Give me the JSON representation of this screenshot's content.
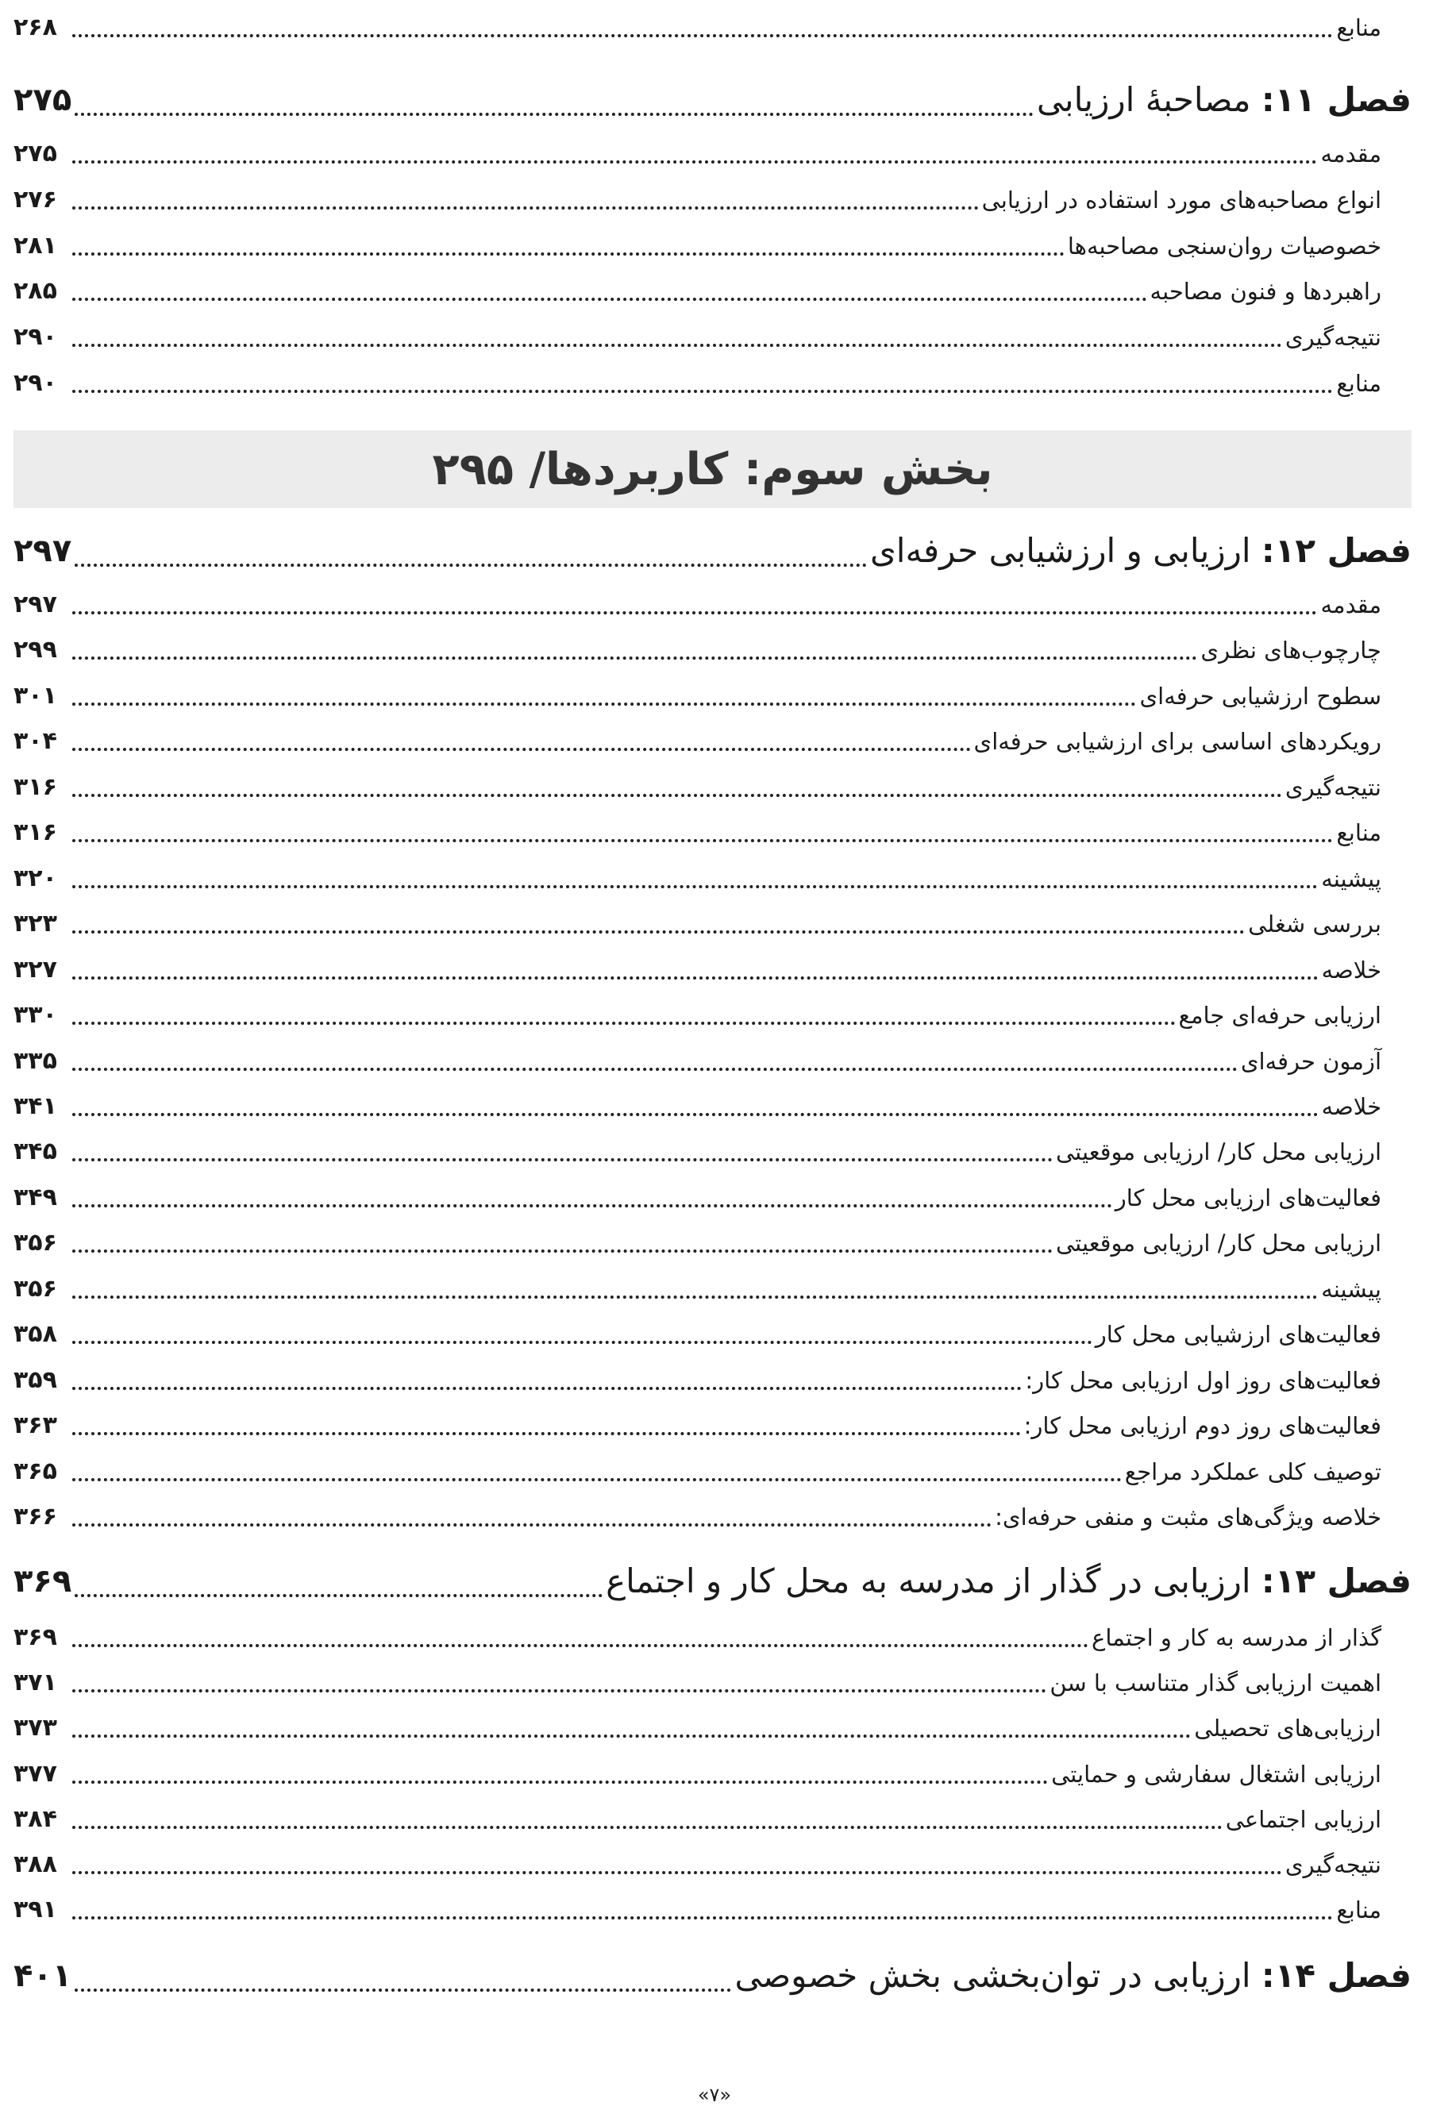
{
  "top_entry": {
    "title": "منابع",
    "page": "۲۶۸"
  },
  "chapter11": {
    "label": "فصل ۱۱:",
    "title": "مصاحبهٔ ارزیابی",
    "page": "۲۷۵",
    "items": [
      {
        "title": "مقدمه",
        "page": "۲۷۵"
      },
      {
        "title": "انواع مصاحبه‌های مورد استفاده در ارزیابی",
        "page": "۲۷۶"
      },
      {
        "title": "خصوصیات روان‌سنجی مصاحبه‌ها",
        "page": "۲۸۱"
      },
      {
        "title": "راهبردها و فنون مصاحبه",
        "page": "۲۸۵"
      },
      {
        "title": "نتیجه‌گیری",
        "page": "۲۹۰"
      },
      {
        "title": "منابع",
        "page": "۲۹۰"
      }
    ]
  },
  "part3": {
    "title": "بخش سوم: کاربردها/ ۲۹۵"
  },
  "chapter12": {
    "label": "فصل ۱۲:",
    "title": "ارزیابی و ارزشیابی حرفه‌ای",
    "page": "۲۹۷",
    "items": [
      {
        "title": "مقدمه",
        "page": "۲۹۷"
      },
      {
        "title": "چارچوب‌های نظری",
        "page": "۲۹۹"
      },
      {
        "title": "سطوح ارزشیابی حرفه‌ای",
        "page": "۳۰۱"
      },
      {
        "title": "رویکردهای اساسی برای ارزشیابی حرفه‌ای",
        "page": "۳۰۴"
      },
      {
        "title": "نتیجه‌گیری",
        "page": "۳۱۶"
      },
      {
        "title": "منابع",
        "page": "۳۱۶"
      },
      {
        "title": "پیشینه",
        "page": "۳۲۰"
      },
      {
        "title": "بررسی شغلی",
        "page": "۳۲۳"
      },
      {
        "title": "خلاصه",
        "page": "۳۲۷"
      },
      {
        "title": "ارزیابی حرفه‌ای جامع",
        "page": "۳۳۰"
      },
      {
        "title": "آزمون حرفه‌ای",
        "page": "۳۳۵"
      },
      {
        "title": "خلاصه",
        "page": "۳۴۱"
      },
      {
        "title": "ارزیابی محل کار/ ارزیابی موقعیتی",
        "page": "۳۴۵"
      },
      {
        "title": "فعالیت‌های ارزیابی محل کار",
        "page": "۳۴۹"
      },
      {
        "title": "ارزیابی محل کار/ ارزیابی موقعیتی",
        "page": "۳۵۶"
      },
      {
        "title": "پیشینه",
        "page": "۳۵۶"
      },
      {
        "title": "فعالیت‌های ارزشیابی محل کار",
        "page": "۳۵۸"
      },
      {
        "title": "فعالیت‌های روز اول ارزیابی محل کار:",
        "page": "۳۵۹"
      },
      {
        "title": "فعالیت‌های روز دوم ارزیابی محل کار:",
        "page": "۳۶۳"
      },
      {
        "title": "توصیف کلی عملکرد مراجع",
        "page": "۳۶۵"
      },
      {
        "title": "خلاصه ویژگی‌های مثبت و منفی حرفه‌ای:",
        "page": "۳۶۶"
      }
    ]
  },
  "chapter13": {
    "label": "فصل ۱۳:",
    "title": "ارزیابی در گذار از مدرسه به محل کار و اجتماع",
    "page": "۳۶۹",
    "items": [
      {
        "title": "گذار از مدرسه به کار و اجتماع",
        "page": "۳۶۹"
      },
      {
        "title": "اهمیت ارزیابی گذار متناسب با سن",
        "page": "۳۷۱"
      },
      {
        "title": "ارزیابی‌های تحصیلی",
        "page": "۳۷۳"
      },
      {
        "title": "ارزیابی اشتغال سفارشی و حمایتی",
        "page": "۳۷۷"
      },
      {
        "title": "ارزیابی اجتماعی",
        "page": "۳۸۴"
      },
      {
        "title": "نتیجه‌گیری",
        "page": "۳۸۸"
      },
      {
        "title": "منابع",
        "page": "۳۹۱"
      }
    ]
  },
  "chapter14": {
    "label": "فصل ۱۴:",
    "title": "ارزیابی در توان‌بخشی بخش خصوصی",
    "page": "۴۰۱"
  },
  "footer": {
    "page_number": "«۷»"
  }
}
